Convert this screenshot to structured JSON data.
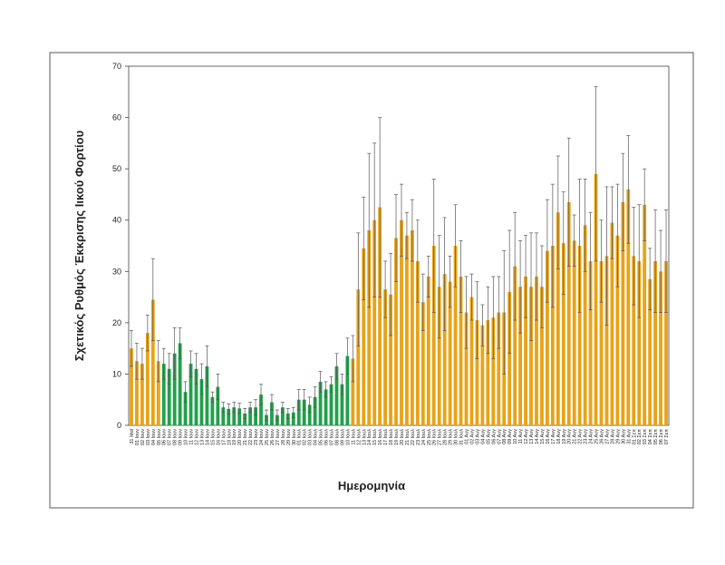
{
  "chart_data": {
    "type": "bar",
    "x_label": "Ημερομηνία",
    "y_label": "Σχετικός Ρυθμός Έκκρισης Ιικού Φορτίου",
    "ylim": [
      0,
      70
    ],
    "yticks": [
      0,
      10,
      20,
      30,
      40,
      50,
      60,
      70
    ],
    "categories": [
      "31 Μαΐ",
      "01 Ιουν",
      "02 Ιουν",
      "03 Ιουν",
      "04 Ιουν",
      "05 Ιουν",
      "06 Ιουν",
      "07 Ιουν",
      "08 Ιουν",
      "09 Ιουν",
      "10 Ιουν",
      "11 Ιουν",
      "12 Ιουν",
      "13 Ιουν",
      "14 Ιουν",
      "15 Ιουν",
      "16 Ιουν",
      "17 Ιουν",
      "18 Ιουν",
      "19 Ιουν",
      "20 Ιουν",
      "21 Ιουν",
      "22 Ιουν",
      "23 Ιουν",
      "24 Ιουν",
      "25 Ιουν",
      "26 Ιουν",
      "27 Ιουν",
      "28 Ιουν",
      "29 Ιουν",
      "30 Ιουν",
      "01 Ιουλ",
      "02 Ιουλ",
      "03 Ιουλ",
      "04 Ιουλ",
      "05 Ιουλ",
      "06 Ιουλ",
      "07 Ιουλ",
      "08 Ιουλ",
      "09 Ιουλ",
      "10 Ιουλ",
      "11 Ιουλ",
      "12 Ιουλ",
      "13 Ιουλ",
      "14 Ιουλ",
      "15 Ιουλ",
      "16 Ιουλ",
      "17 Ιουλ",
      "18 Ιουλ",
      "19 Ιουλ",
      "20 Ιουλ",
      "21 Ιουλ",
      "22 Ιουλ",
      "23 Ιουλ",
      "24 Ιουλ",
      "25 Ιουλ",
      "26 Ιουλ",
      "27 Ιουλ",
      "28 Ιουλ",
      "29 Ιουλ",
      "30 Ιουλ",
      "31 Ιουλ",
      "01 Αυγ",
      "02 Αυγ",
      "03 Αυγ",
      "04 Αυγ",
      "05 Αυγ",
      "06 Αυγ",
      "07 Αυγ",
      "08 Αυγ",
      "09 Αυγ",
      "10 Αυγ",
      "11 Αυγ",
      "12 Αυγ",
      "13 Αυγ",
      "14 Αυγ",
      "15 Αυγ",
      "16 Αυγ",
      "17 Αυγ",
      "18 Αυγ",
      "19 Αυγ",
      "20 Αυγ",
      "21 Αυγ",
      "22 Αυγ",
      "23 Αυγ",
      "24 Αυγ",
      "25 Αυγ",
      "26 Αυγ",
      "27 Αυγ",
      "28 Αυγ",
      "29 Αυγ",
      "30 Αυγ",
      "31 Αυγ",
      "01 Σεπ",
      "02 Σεπ",
      "03 Σεπ",
      "04 Σεπ",
      "05 Σεπ",
      "06 Σεπ",
      "07 Σεπ"
    ],
    "values": [
      15,
      12.5,
      12,
      18,
      24.5,
      12.5,
      12,
      11,
      14,
      16,
      6.5,
      12,
      11,
      9,
      11.5,
      5.5,
      7.5,
      3.5,
      3.2,
      3.5,
      3.3,
      2.3,
      3.5,
      3.5,
      6,
      2,
      4.5,
      2,
      3.5,
      2.3,
      2.5,
      5,
      5,
      4,
      5.5,
      8.5,
      7,
      8,
      11.5,
      8,
      13.5,
      13,
      26.5,
      34.5,
      38,
      40,
      42.5,
      26.5,
      25.5,
      36.5,
      40,
      37,
      38,
      32,
      24,
      29,
      35,
      27,
      29.5,
      28,
      35,
      29,
      22,
      25,
      20.5,
      19.5,
      20.5,
      21,
      22,
      22,
      26,
      31,
      27,
      29,
      27,
      29,
      27,
      34,
      35,
      41.5,
      35.5,
      43.5,
      36,
      35,
      39,
      32,
      49,
      32,
      33,
      39.5,
      37,
      43.5,
      46,
      33,
      32,
      43,
      28.5,
      32,
      30,
      32
    ],
    "errors": [
      3.5,
      3.5,
      3,
      3.5,
      8,
      4,
      3,
      3,
      5,
      3,
      2,
      2.5,
      3,
      3,
      4,
      1,
      2.5,
      1,
      1,
      1,
      1,
      1,
      1,
      1.5,
      2,
      1,
      1.5,
      1,
      1,
      1,
      1,
      2,
      2,
      1.5,
      2,
      2,
      1.5,
      1.5,
      2.5,
      2,
      3.5,
      4.5,
      11,
      10,
      15,
      15,
      17.5,
      5.5,
      8,
      8.5,
      7,
      4.5,
      6,
      8,
      5.5,
      4,
      13,
      10,
      11,
      5,
      8,
      7,
      7,
      4.5,
      7.5,
      4,
      6.5,
      8,
      7,
      12,
      12,
      10.5,
      9,
      8,
      10.5,
      8.5,
      8,
      10,
      12,
      11,
      10,
      12.5,
      5,
      13,
      9,
      9.5,
      17,
      8,
      13.5,
      7,
      10,
      9.5,
      10.5,
      9.5,
      11,
      7,
      6,
      10,
      8,
      10
    ],
    "colors": [
      "#e8a317",
      "#e8a317",
      "#e8a317",
      "#e8a317",
      "#e8a317",
      "#e8a317",
      "#22a04b",
      "#22a04b",
      "#22a04b",
      "#22a04b",
      "#22a04b",
      "#22a04b",
      "#22a04b",
      "#22a04b",
      "#22a04b",
      "#22a04b",
      "#22a04b",
      "#22a04b",
      "#22a04b",
      "#22a04b",
      "#22a04b",
      "#22a04b",
      "#22a04b",
      "#22a04b",
      "#22a04b",
      "#22a04b",
      "#22a04b",
      "#22a04b",
      "#22a04b",
      "#22a04b",
      "#22a04b",
      "#22a04b",
      "#22a04b",
      "#22a04b",
      "#22a04b",
      "#22a04b",
      "#22a04b",
      "#22a04b",
      "#22a04b",
      "#22a04b",
      "#22a04b",
      "#e8a317",
      "#e8a317",
      "#e8a317",
      "#e8a317",
      "#e8a317",
      "#e8a317",
      "#e8a317",
      "#e8a317",
      "#e8a317",
      "#e8a317",
      "#e8a317",
      "#e8a317",
      "#e8a317",
      "#e8a317",
      "#e8a317",
      "#e8a317",
      "#e8a317",
      "#e8a317",
      "#e8a317",
      "#e8a317",
      "#e8a317",
      "#e8a317",
      "#e8a317",
      "#e8a317",
      "#e8a317",
      "#e8a317",
      "#e8a317",
      "#e8a317",
      "#e8a317",
      "#e8a317",
      "#e8a317",
      "#e8a317",
      "#e8a317",
      "#e8a317",
      "#e8a317",
      "#e8a317",
      "#e8a317",
      "#e8a317",
      "#e8a317",
      "#e8a317",
      "#e8a317",
      "#e8a317",
      "#e8a317",
      "#e8a317",
      "#e8a317",
      "#e8a317",
      "#e8a317",
      "#e8a317",
      "#e8a317",
      "#e8a317",
      "#e8a317",
      "#e8a317",
      "#e8a317",
      "#e8a317",
      "#e8a317",
      "#e8a317",
      "#e8a317",
      "#e8a317",
      "#e8a317",
      "#e8a317"
    ]
  }
}
